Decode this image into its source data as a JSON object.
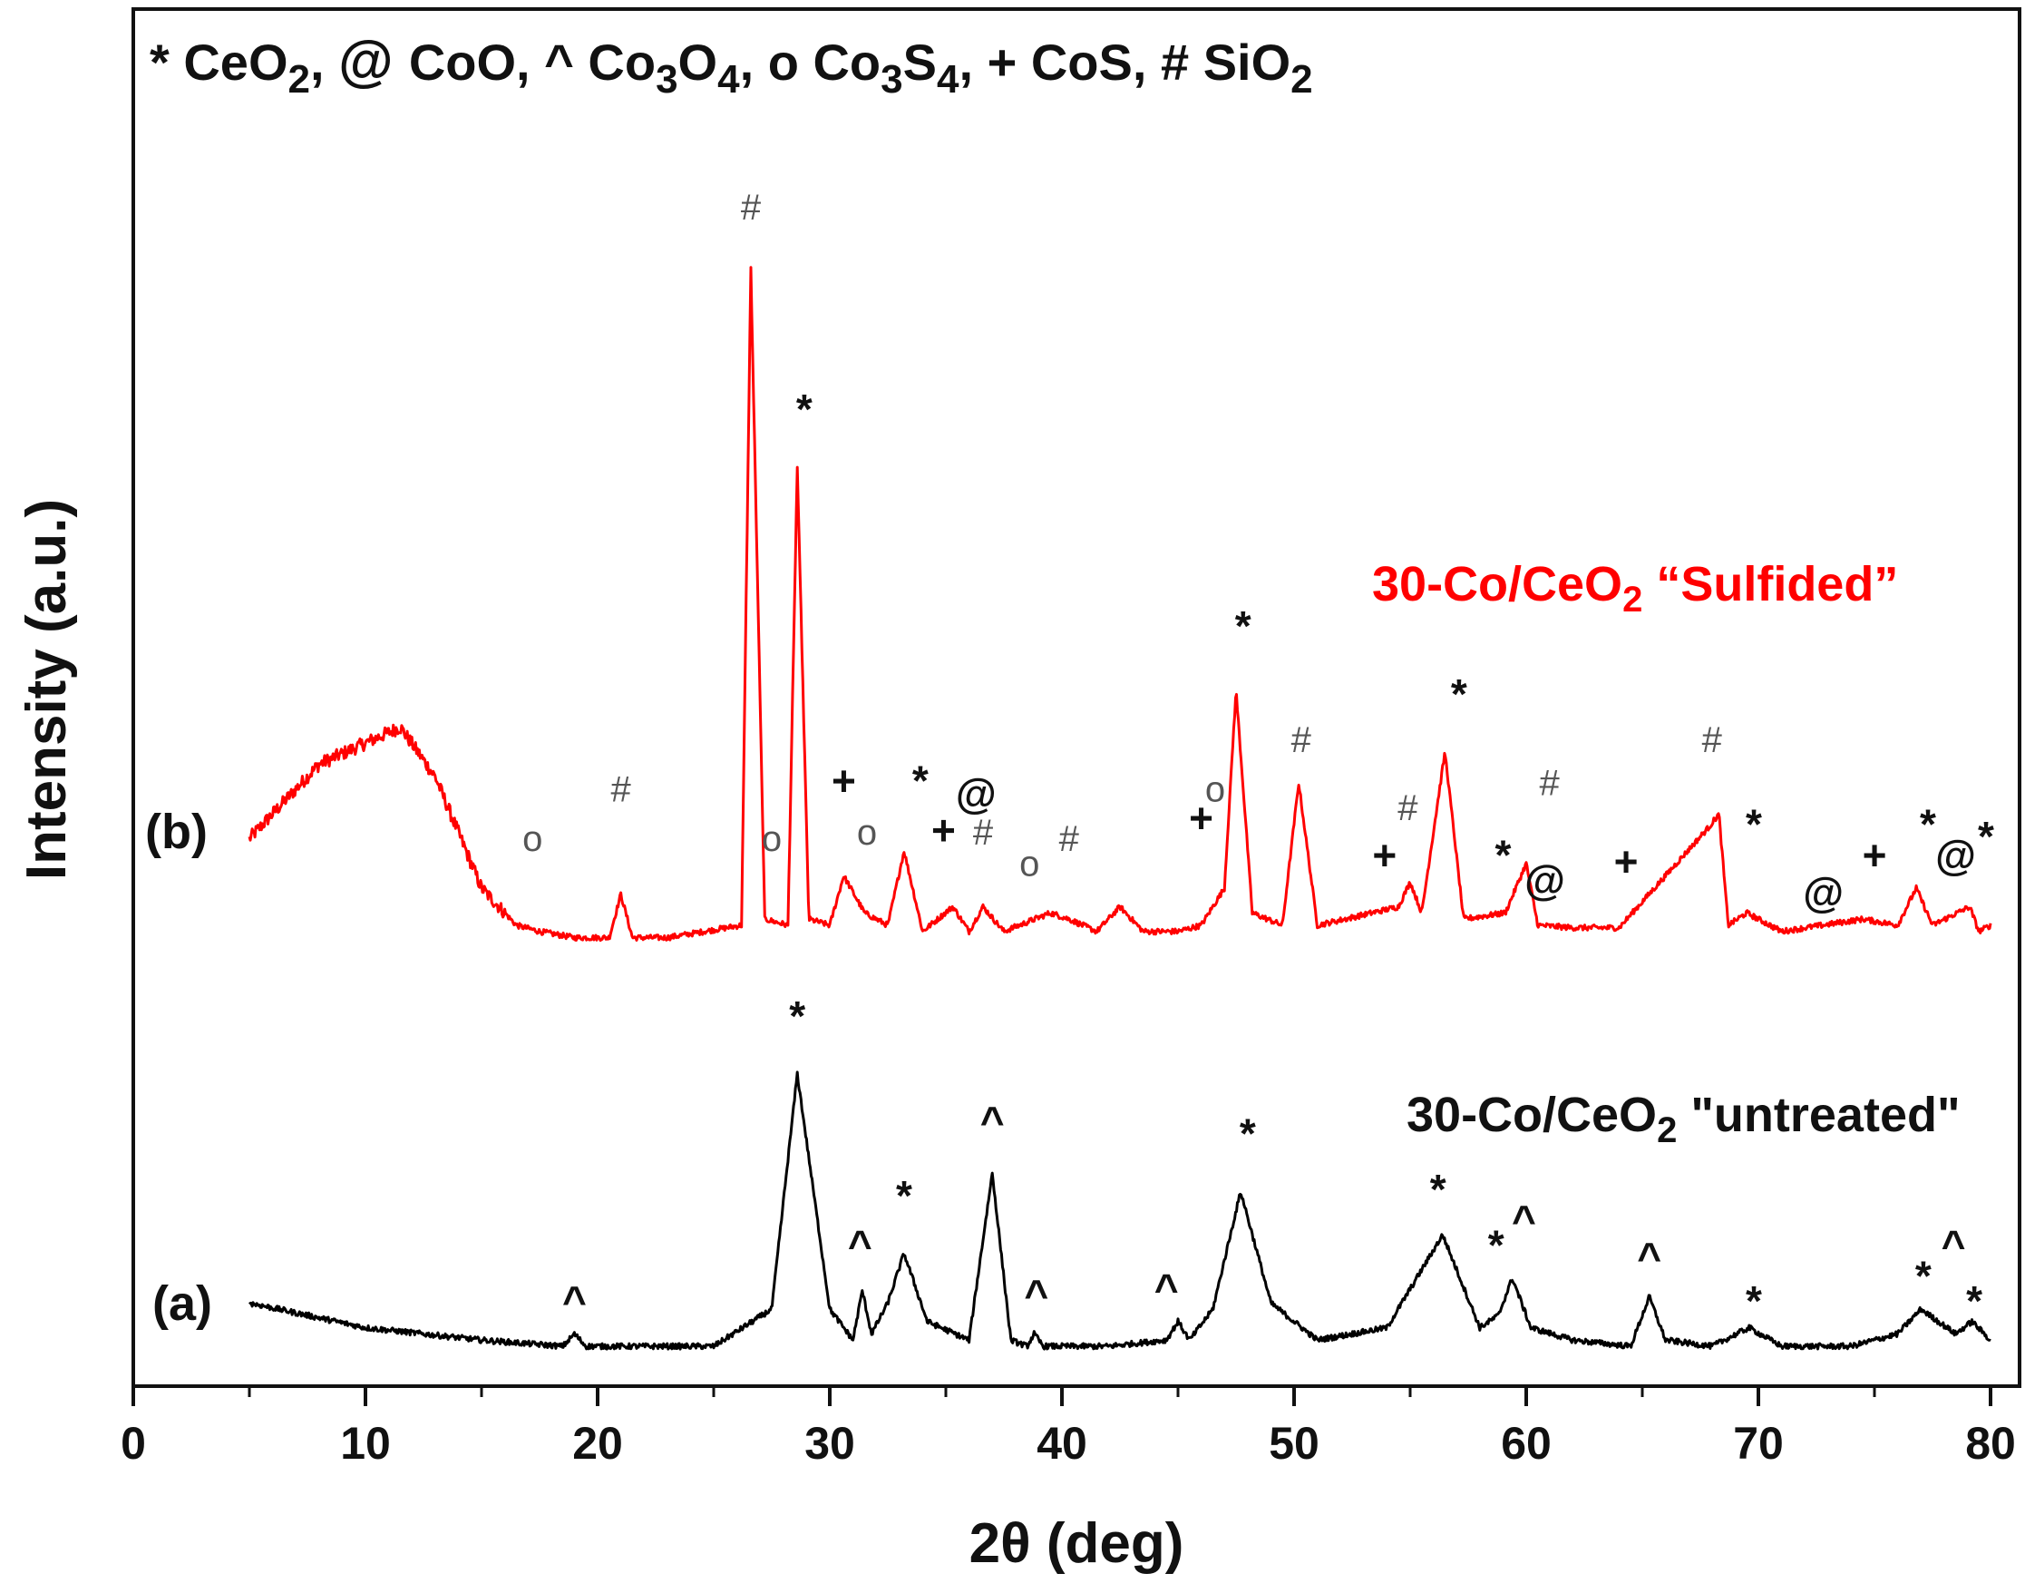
{
  "chart_data": {
    "type": "line",
    "xlabel": "2θ (deg)",
    "ylabel": "Intensity (a.u.)",
    "xlim": [
      0,
      80
    ],
    "xticks": [
      0,
      10,
      20,
      30,
      40,
      50,
      60,
      70,
      80
    ],
    "xtick_labels": [
      "0",
      "10",
      "20",
      "30",
      "40",
      "50",
      "60",
      "70",
      "80"
    ],
    "ylim": [
      0,
      100
    ],
    "grid": false,
    "legend_text": "* CeO2, @ CoO, ^ Co3O4, o Co3S4, + CoS, # SiO2",
    "series": [
      {
        "name": "30-Co/CeO2 “Sulfided”",
        "tag": "(b)",
        "color": "#ff0000",
        "x": [
          5,
          8,
          11.5,
          13,
          15,
          16.5,
          17.5,
          19,
          20.5,
          21,
          21.5,
          23,
          26.2,
          26.6,
          27.2,
          28.2,
          28.6,
          29.1,
          30,
          30.6,
          31.5,
          32.5,
          33.2,
          34,
          35.3,
          36,
          36.6,
          37.5,
          39.5,
          40.3,
          41.5,
          42.5,
          43.5,
          45,
          46,
          47,
          47.5,
          48.2,
          49.5,
          50.2,
          51,
          52.2,
          54.5,
          55,
          55.5,
          56.5,
          57.3,
          59.1,
          60,
          60.5,
          62,
          64,
          67.9,
          68.3,
          68.7,
          69.5,
          71,
          74.5,
          76,
          76.8,
          77.5,
          79.1,
          79.5,
          80
        ],
        "y": [
          44,
          50,
          53,
          49,
          40,
          37,
          36.5,
          36,
          36,
          39.5,
          36,
          36,
          37,
          90,
          37.5,
          37,
          74,
          37.5,
          37,
          41,
          38,
          37,
          43,
          36.5,
          38.5,
          36.5,
          38.5,
          36.5,
          38,
          37.5,
          36.5,
          38.5,
          36.5,
          36.5,
          37,
          40,
          56,
          38,
          37,
          48.5,
          37,
          37.5,
          38.5,
          40.5,
          38,
          51,
          37.5,
          38,
          42,
          37,
          36.8,
          36.8,
          45,
          46,
          37,
          38,
          36.5,
          37.5,
          37,
          40,
          37,
          38.5,
          36.5,
          37
        ]
      },
      {
        "name": "30-Co/CeO2 \"untreated\"",
        "tag": "(a)",
        "color": "#000000",
        "x": [
          5,
          10,
          15,
          18.5,
          19,
          19.5,
          25,
          27.5,
          28.6,
          30,
          31,
          31.4,
          31.8,
          32.5,
          33.2,
          34.2,
          36,
          37,
          37.8,
          38.5,
          38.8,
          39.2,
          42,
          44.5,
          45,
          45.5,
          46.5,
          47.7,
          49,
          51,
          54,
          56.4,
          58,
          58.8,
          59.4,
          60.2,
          62,
          64.5,
          65.3,
          66,
          68,
          69.6,
          71,
          74,
          76,
          77,
          78.5,
          79.2,
          80
        ],
        "y": [
          6.5,
          4.5,
          3.5,
          3,
          4,
          3,
          3,
          6,
          25,
          6,
          3.5,
          7.5,
          4,
          6.5,
          10.5,
          5,
          3.5,
          17,
          3.5,
          3,
          4,
          3,
          3,
          3.5,
          5,
          3.5,
          6,
          15.5,
          6.5,
          3.5,
          4.5,
          12,
          4.5,
          5.5,
          8.5,
          4.5,
          3.5,
          3,
          7,
          3.5,
          3,
          4.5,
          3,
          3,
          4,
          6,
          4,
          5,
          3.5
        ]
      }
    ],
    "annotations": [
      {
        "x": 26.6,
        "y": 94,
        "text": "#",
        "series": "b"
      },
      {
        "x": 28.9,
        "y": 77.5,
        "text": "*",
        "series": "b"
      },
      {
        "x": 17.2,
        "y": 43,
        "text": "o",
        "series": "b"
      },
      {
        "x": 21.0,
        "y": 47,
        "text": "#",
        "series": "b"
      },
      {
        "x": 27.5,
        "y": 43,
        "text": "o",
        "series": "b"
      },
      {
        "x": 30.6,
        "y": 47.5,
        "text": "+",
        "series": "b"
      },
      {
        "x": 31.6,
        "y": 43.5,
        "text": "o",
        "series": "b"
      },
      {
        "x": 33.9,
        "y": 47.5,
        "text": "*",
        "series": "b"
      },
      {
        "x": 34.9,
        "y": 43.5,
        "text": "+",
        "series": "b"
      },
      {
        "x": 36.3,
        "y": 46.5,
        "text": "@",
        "series": "b"
      },
      {
        "x": 36.6,
        "y": 43.5,
        "text": "#",
        "series": "b"
      },
      {
        "x": 38.6,
        "y": 41,
        "text": "o",
        "series": "b"
      },
      {
        "x": 40.3,
        "y": 43,
        "text": "#",
        "series": "b"
      },
      {
        "x": 46.0,
        "y": 44.5,
        "text": "+",
        "series": "b"
      },
      {
        "x": 46.6,
        "y": 47,
        "text": "o",
        "series": "b"
      },
      {
        "x": 47.8,
        "y": 60,
        "text": "*",
        "series": "b"
      },
      {
        "x": 50.3,
        "y": 51,
        "text": "#",
        "series": "b"
      },
      {
        "x": 53.9,
        "y": 41.5,
        "text": "+",
        "series": "b"
      },
      {
        "x": 54.9,
        "y": 45.5,
        "text": "#",
        "series": "b"
      },
      {
        "x": 57.1,
        "y": 54.5,
        "text": "*",
        "series": "b"
      },
      {
        "x": 59.0,
        "y": 41.5,
        "text": "*",
        "series": "b"
      },
      {
        "x": 60.8,
        "y": 39.5,
        "text": "@",
        "series": "b"
      },
      {
        "x": 61.0,
        "y": 47.5,
        "text": "#",
        "series": "b"
      },
      {
        "x": 64.3,
        "y": 41,
        "text": "+",
        "series": "b"
      },
      {
        "x": 68.0,
        "y": 51,
        "text": "#",
        "series": "b"
      },
      {
        "x": 69.8,
        "y": 44,
        "text": "*",
        "series": "b"
      },
      {
        "x": 72.8,
        "y": 38.5,
        "text": "@",
        "series": "b"
      },
      {
        "x": 75.0,
        "y": 41.5,
        "text": "+",
        "series": "b"
      },
      {
        "x": 77.3,
        "y": 44,
        "text": "*",
        "series": "b"
      },
      {
        "x": 78.5,
        "y": 41.5,
        "text": "@",
        "series": "b"
      },
      {
        "x": 79.8,
        "y": 43,
        "text": "*",
        "series": "b"
      },
      {
        "x": 28.6,
        "y": 28.5,
        "text": "*",
        "series": "a"
      },
      {
        "x": 19.0,
        "y": 5.5,
        "text": "^",
        "series": "a"
      },
      {
        "x": 31.3,
        "y": 10,
        "text": "^",
        "series": "a"
      },
      {
        "x": 33.2,
        "y": 14,
        "text": "*",
        "series": "a"
      },
      {
        "x": 37.0,
        "y": 20,
        "text": "^",
        "series": "a"
      },
      {
        "x": 38.9,
        "y": 6,
        "text": "^",
        "series": "a"
      },
      {
        "x": 44.5,
        "y": 6.5,
        "text": "^",
        "series": "a"
      },
      {
        "x": 48.0,
        "y": 19,
        "text": "*",
        "series": "a"
      },
      {
        "x": 56.2,
        "y": 14.5,
        "text": "*",
        "series": "a"
      },
      {
        "x": 58.7,
        "y": 10,
        "text": "*",
        "series": "a"
      },
      {
        "x": 59.9,
        "y": 12,
        "text": "^",
        "series": "a"
      },
      {
        "x": 65.3,
        "y": 9,
        "text": "^",
        "series": "a"
      },
      {
        "x": 69.8,
        "y": 5.5,
        "text": "*",
        "series": "a"
      },
      {
        "x": 77.1,
        "y": 7.5,
        "text": "*",
        "series": "a"
      },
      {
        "x": 78.4,
        "y": 10,
        "text": "^",
        "series": "a"
      },
      {
        "x": 79.3,
        "y": 5.5,
        "text": "*",
        "series": "a"
      }
    ]
  }
}
